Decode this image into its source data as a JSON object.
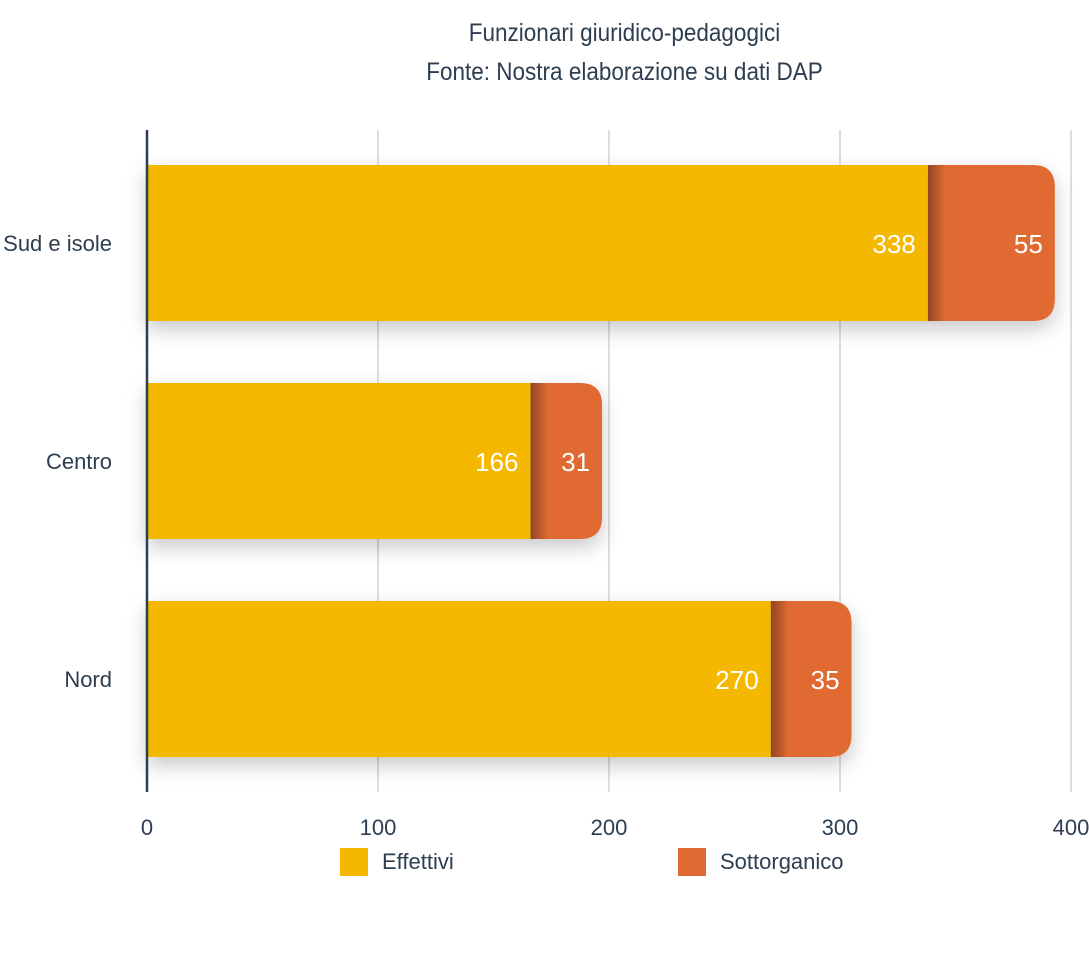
{
  "title": "Funzionari giuridico-pedagogici",
  "subtitle": "Fonte: Nostra elaborazione su dati DAP",
  "colors": {
    "effettivi": "#f5b800",
    "sottorganico": "#e06a33",
    "axis": "#2d3e50",
    "grid": "#c8c8c8",
    "text": "#2d3e50",
    "label": "#ffffff"
  },
  "chart_data": {
    "type": "bar",
    "orientation": "horizontal",
    "stacked": true,
    "categories": [
      "Sud e isole",
      "Centro",
      "Nord"
    ],
    "series": [
      {
        "name": "Effettivi",
        "values": [
          338,
          166,
          270
        ]
      },
      {
        "name": "Sottorganico",
        "values": [
          55,
          31,
          35
        ]
      }
    ],
    "xlim": [
      0,
      400
    ],
    "xticks": [
      "0",
      "100",
      "200",
      "300",
      "400"
    ],
    "grid": true,
    "legend": "bottom"
  },
  "legend": [
    {
      "label": "Effettivi"
    },
    {
      "label": "Sottorganico"
    }
  ]
}
